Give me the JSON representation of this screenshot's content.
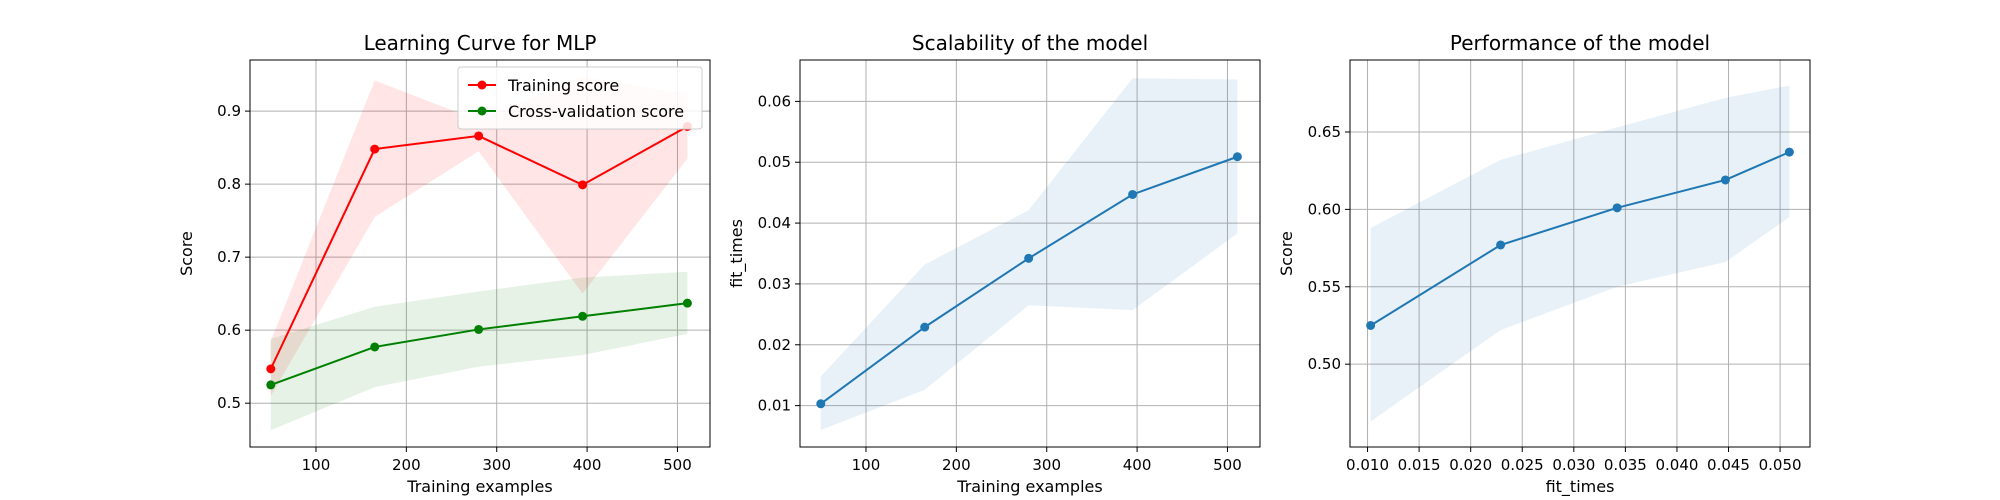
{
  "chart_data": [
    {
      "type": "line",
      "title": "Learning Curve for MLP",
      "xlabel": "Training examples",
      "ylabel": "Score",
      "xlim": [
        27,
        536
      ],
      "ylim": [
        0.44,
        0.97
      ],
      "xticks": [
        100,
        200,
        300,
        400,
        500
      ],
      "yticks": [
        0.5,
        0.6,
        0.7,
        0.8,
        0.9
      ],
      "grid": true,
      "legend": "top-right",
      "x": [
        50,
        165,
        280,
        395,
        511
      ],
      "series": [
        {
          "name": "Training score",
          "color": "#ff0000",
          "values": [
            0.547,
            0.848,
            0.866,
            0.799,
            0.879
          ],
          "band_lower": [
            0.51,
            0.755,
            0.845,
            0.65,
            0.835
          ],
          "band_upper": [
            0.585,
            0.942,
            0.887,
            0.948,
            0.923
          ]
        },
        {
          "name": "Cross-validation score",
          "color": "#008000",
          "values": [
            0.525,
            0.577,
            0.601,
            0.619,
            0.637
          ],
          "band_lower": [
            0.463,
            0.522,
            0.55,
            0.566,
            0.595
          ],
          "band_upper": [
            0.588,
            0.632,
            0.653,
            0.672,
            0.68
          ]
        }
      ]
    },
    {
      "type": "line",
      "title": "Scalability of the model",
      "xlabel": "Training examples",
      "ylabel": "fit_times",
      "xlim": [
        27,
        536
      ],
      "ylim": [
        0.0032,
        0.0668
      ],
      "xticks": [
        100,
        200,
        300,
        400,
        500
      ],
      "yticks": [
        0.01,
        0.02,
        0.03,
        0.04,
        0.05,
        0.06
      ],
      "grid": true,
      "x": [
        50,
        165,
        280,
        395,
        511
      ],
      "series": [
        {
          "color": "#1f77b4",
          "values": [
            0.0103,
            0.0229,
            0.0342,
            0.0447,
            0.0509
          ],
          "band_lower": [
            0.006,
            0.0126,
            0.0265,
            0.0257,
            0.0383
          ],
          "band_upper": [
            0.0148,
            0.0332,
            0.0421,
            0.0638,
            0.0636
          ]
        }
      ]
    },
    {
      "type": "line",
      "title": "Performance of the model",
      "xlabel": "fit_times",
      "ylabel": "Score",
      "xlim": [
        0.0083,
        0.0529
      ],
      "ylim": [
        0.4465,
        0.6965
      ],
      "xticks": [
        0.01,
        0.015,
        0.02,
        0.025,
        0.03,
        0.035,
        0.04,
        0.045,
        0.05
      ],
      "xtick_labels": [
        "0.010",
        "0.015",
        "0.020",
        "0.025",
        "0.030",
        "0.035",
        "0.040",
        "0.045",
        "0.050"
      ],
      "yticks": [
        0.5,
        0.55,
        0.6,
        0.65
      ],
      "ytick_labels": [
        "0.50",
        "0.55",
        "0.60",
        "0.65"
      ],
      "grid": true,
      "x": [
        0.0103,
        0.0229,
        0.0342,
        0.0447,
        0.0509
      ],
      "series": [
        {
          "color": "#1f77b4",
          "values": [
            0.525,
            0.577,
            0.601,
            0.619,
            0.637
          ],
          "band_lower": [
            0.463,
            0.522,
            0.55,
            0.566,
            0.595
          ],
          "band_upper": [
            0.588,
            0.632,
            0.653,
            0.672,
            0.68
          ]
        }
      ]
    }
  ]
}
